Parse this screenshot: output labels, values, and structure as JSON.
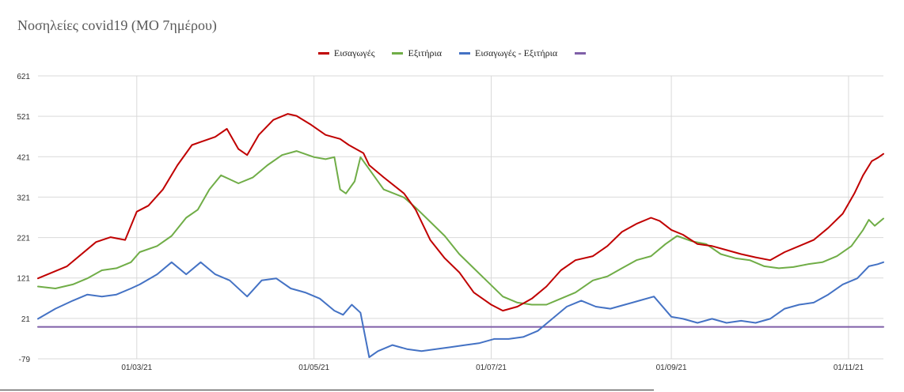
{
  "chart_data": {
    "type": "line",
    "title": "Νοσηλείες covid19 (ΜΟ 7ημέρου)",
    "xlabel": "",
    "ylabel": "",
    "x_range": [
      "2021-01-26",
      "2021-11-13"
    ],
    "ylim": [
      -79,
      621
    ],
    "y_ticks": [
      "621",
      "521",
      "421",
      "321",
      "221",
      "121",
      "21",
      "-79"
    ],
    "y_tick_values": [
      621,
      521,
      421,
      321,
      221,
      121,
      21,
      -79
    ],
    "x_tick_labels": [
      "01/03/21",
      "01/05/21",
      "01/07/21",
      "01/09/21",
      "01/11/21"
    ],
    "x_tick_dates": [
      "2021-03-01",
      "2021-05-01",
      "2021-07-01",
      "2021-09-01",
      "2021-11-01"
    ],
    "grid": "horizontal and vertical",
    "legend_position": "top-center",
    "series": [
      {
        "name": "Εισαγωγές",
        "color": "#c00000",
        "points": [
          [
            "2021-01-26",
            120
          ],
          [
            "2021-02-05",
            150
          ],
          [
            "2021-02-15",
            210
          ],
          [
            "2021-02-20",
            222
          ],
          [
            "2021-02-25",
            215
          ],
          [
            "2021-03-01",
            285
          ],
          [
            "2021-03-05",
            300
          ],
          [
            "2021-03-10",
            340
          ],
          [
            "2021-03-15",
            400
          ],
          [
            "2021-03-20",
            450
          ],
          [
            "2021-03-28",
            470
          ],
          [
            "2021-04-01",
            490
          ],
          [
            "2021-04-05",
            440
          ],
          [
            "2021-04-08",
            425
          ],
          [
            "2021-04-12",
            475
          ],
          [
            "2021-04-17",
            512
          ],
          [
            "2021-04-22",
            527
          ],
          [
            "2021-04-25",
            522
          ],
          [
            "2021-04-30",
            500
          ],
          [
            "2021-05-05",
            475
          ],
          [
            "2021-05-10",
            465
          ],
          [
            "2021-05-13",
            450
          ],
          [
            "2021-05-18",
            430
          ],
          [
            "2021-05-20",
            400
          ],
          [
            "2021-05-25",
            370
          ],
          [
            "2021-06-01",
            330
          ],
          [
            "2021-06-05",
            290
          ],
          [
            "2021-06-10",
            215
          ],
          [
            "2021-06-15",
            170
          ],
          [
            "2021-06-20",
            135
          ],
          [
            "2021-06-25",
            85
          ],
          [
            "2021-07-01",
            55
          ],
          [
            "2021-07-05",
            40
          ],
          [
            "2021-07-10",
            50
          ],
          [
            "2021-07-15",
            70
          ],
          [
            "2021-07-20",
            100
          ],
          [
            "2021-07-25",
            140
          ],
          [
            "2021-07-30",
            165
          ],
          [
            "2021-08-05",
            175
          ],
          [
            "2021-08-10",
            200
          ],
          [
            "2021-08-15",
            235
          ],
          [
            "2021-08-20",
            255
          ],
          [
            "2021-08-25",
            270
          ],
          [
            "2021-08-28",
            262
          ],
          [
            "2021-09-01",
            240
          ],
          [
            "2021-09-05",
            228
          ],
          [
            "2021-09-10",
            205
          ],
          [
            "2021-09-15",
            200
          ],
          [
            "2021-09-20",
            190
          ],
          [
            "2021-09-25",
            180
          ],
          [
            "2021-09-30",
            172
          ],
          [
            "2021-10-05",
            165
          ],
          [
            "2021-10-10",
            185
          ],
          [
            "2021-10-15",
            200
          ],
          [
            "2021-10-20",
            215
          ],
          [
            "2021-10-25",
            245
          ],
          [
            "2021-10-30",
            280
          ],
          [
            "2021-11-03",
            330
          ],
          [
            "2021-11-06",
            375
          ],
          [
            "2021-11-09",
            410
          ],
          [
            "2021-11-11",
            418
          ],
          [
            "2021-11-13",
            428
          ]
        ]
      },
      {
        "name": "Εξιτήρια",
        "color": "#70ad47",
        "points": [
          [
            "2021-01-26",
            100
          ],
          [
            "2021-02-01",
            95
          ],
          [
            "2021-02-07",
            105
          ],
          [
            "2021-02-12",
            120
          ],
          [
            "2021-02-17",
            140
          ],
          [
            "2021-02-22",
            145
          ],
          [
            "2021-02-27",
            160
          ],
          [
            "2021-03-02",
            185
          ],
          [
            "2021-03-08",
            200
          ],
          [
            "2021-03-13",
            225
          ],
          [
            "2021-03-18",
            270
          ],
          [
            "2021-03-22",
            290
          ],
          [
            "2021-03-26",
            340
          ],
          [
            "2021-03-30",
            375
          ],
          [
            "2021-04-02",
            365
          ],
          [
            "2021-04-05",
            355
          ],
          [
            "2021-04-10",
            370
          ],
          [
            "2021-04-15",
            400
          ],
          [
            "2021-04-20",
            425
          ],
          [
            "2021-04-25",
            435
          ],
          [
            "2021-05-01",
            420
          ],
          [
            "2021-05-05",
            415
          ],
          [
            "2021-05-08",
            420
          ],
          [
            "2021-05-10",
            340
          ],
          [
            "2021-05-12",
            330
          ],
          [
            "2021-05-15",
            360
          ],
          [
            "2021-05-17",
            420
          ],
          [
            "2021-05-20",
            390
          ],
          [
            "2021-05-25",
            340
          ],
          [
            "2021-06-01",
            320
          ],
          [
            "2021-06-05",
            295
          ],
          [
            "2021-06-10",
            260
          ],
          [
            "2021-06-15",
            225
          ],
          [
            "2021-06-20",
            180
          ],
          [
            "2021-06-25",
            145
          ],
          [
            "2021-06-30",
            110
          ],
          [
            "2021-07-05",
            75
          ],
          [
            "2021-07-10",
            60
          ],
          [
            "2021-07-15",
            55
          ],
          [
            "2021-07-20",
            55
          ],
          [
            "2021-07-25",
            70
          ],
          [
            "2021-07-30",
            85
          ],
          [
            "2021-08-05",
            115
          ],
          [
            "2021-08-10",
            125
          ],
          [
            "2021-08-15",
            145
          ],
          [
            "2021-08-20",
            165
          ],
          [
            "2021-08-25",
            175
          ],
          [
            "2021-08-30",
            205
          ],
          [
            "2021-09-03",
            225
          ],
          [
            "2021-09-08",
            212
          ],
          [
            "2021-09-13",
            205
          ],
          [
            "2021-09-18",
            180
          ],
          [
            "2021-09-23",
            170
          ],
          [
            "2021-09-28",
            165
          ],
          [
            "2021-10-03",
            150
          ],
          [
            "2021-10-08",
            145
          ],
          [
            "2021-10-13",
            148
          ],
          [
            "2021-10-18",
            155
          ],
          [
            "2021-10-23",
            160
          ],
          [
            "2021-10-28",
            175
          ],
          [
            "2021-11-02",
            200
          ],
          [
            "2021-11-06",
            240
          ],
          [
            "2021-11-08",
            265
          ],
          [
            "2021-11-10",
            250
          ],
          [
            "2021-11-13",
            268
          ]
        ]
      },
      {
        "name": "Εισαγωγές - Εξιτήρια",
        "color": "#4472c4",
        "points": [
          [
            "2021-01-26",
            20
          ],
          [
            "2021-02-01",
            45
          ],
          [
            "2021-02-07",
            65
          ],
          [
            "2021-02-12",
            80
          ],
          [
            "2021-02-17",
            75
          ],
          [
            "2021-02-22",
            80
          ],
          [
            "2021-02-27",
            95
          ],
          [
            "2021-03-02",
            105
          ],
          [
            "2021-03-08",
            130
          ],
          [
            "2021-03-13",
            160
          ],
          [
            "2021-03-18",
            130
          ],
          [
            "2021-03-23",
            160
          ],
          [
            "2021-03-28",
            130
          ],
          [
            "2021-04-02",
            115
          ],
          [
            "2021-04-08",
            75
          ],
          [
            "2021-04-13",
            115
          ],
          [
            "2021-04-18",
            120
          ],
          [
            "2021-04-23",
            95
          ],
          [
            "2021-04-28",
            85
          ],
          [
            "2021-05-03",
            70
          ],
          [
            "2021-05-08",
            40
          ],
          [
            "2021-05-11",
            30
          ],
          [
            "2021-05-14",
            55
          ],
          [
            "2021-05-17",
            35
          ],
          [
            "2021-05-20",
            -75
          ],
          [
            "2021-05-23",
            -60
          ],
          [
            "2021-05-28",
            -45
          ],
          [
            "2021-06-02",
            -55
          ],
          [
            "2021-06-07",
            -60
          ],
          [
            "2021-06-12",
            -55
          ],
          [
            "2021-06-17",
            -50
          ],
          [
            "2021-06-22",
            -45
          ],
          [
            "2021-06-27",
            -40
          ],
          [
            "2021-07-02",
            -30
          ],
          [
            "2021-07-07",
            -30
          ],
          [
            "2021-07-12",
            -25
          ],
          [
            "2021-07-17",
            -10
          ],
          [
            "2021-07-22",
            20
          ],
          [
            "2021-07-27",
            50
          ],
          [
            "2021-08-01",
            65
          ],
          [
            "2021-08-06",
            50
          ],
          [
            "2021-08-11",
            45
          ],
          [
            "2021-08-16",
            55
          ],
          [
            "2021-08-21",
            65
          ],
          [
            "2021-08-26",
            75
          ],
          [
            "2021-09-01",
            25
          ],
          [
            "2021-09-05",
            20
          ],
          [
            "2021-09-10",
            10
          ],
          [
            "2021-09-15",
            20
          ],
          [
            "2021-09-20",
            10
          ],
          [
            "2021-09-25",
            15
          ],
          [
            "2021-09-30",
            10
          ],
          [
            "2021-10-05",
            20
          ],
          [
            "2021-10-10",
            45
          ],
          [
            "2021-10-15",
            55
          ],
          [
            "2021-10-20",
            60
          ],
          [
            "2021-10-25",
            80
          ],
          [
            "2021-10-30",
            105
          ],
          [
            "2021-11-04",
            120
          ],
          [
            "2021-11-08",
            150
          ],
          [
            "2021-11-11",
            155
          ],
          [
            "2021-11-13",
            160
          ]
        ]
      },
      {
        "name": "",
        "color": "#7f5fa8",
        "points": [
          [
            "2021-01-26",
            0
          ],
          [
            "2021-11-13",
            0
          ]
        ]
      }
    ]
  }
}
